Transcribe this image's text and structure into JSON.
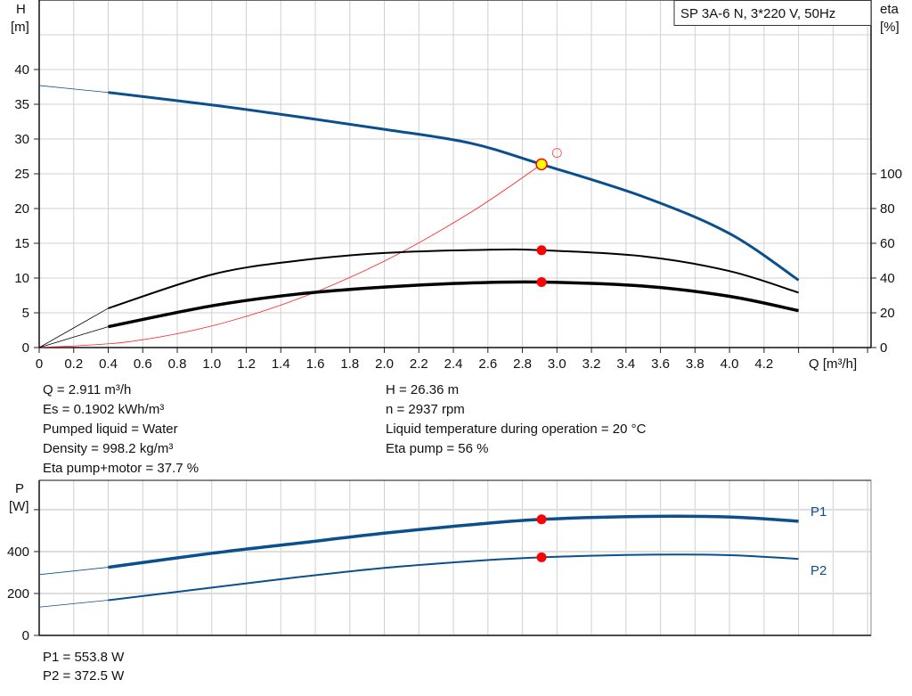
{
  "chart_data": [
    {
      "type": "line",
      "title": "SP 3A-6 N, 3*220 V, 50Hz",
      "xlabel": "Q [m³/h]",
      "ylabel": "H",
      "ylabel_unit": "[m]",
      "y2label": "eta",
      "y2label_unit": "[%]",
      "xlim": [
        0,
        4.82
      ],
      "ylim": [
        0,
        50
      ],
      "y2lim": [
        0,
        200
      ],
      "xticks": [
        "0",
        "0.2",
        "0.4",
        "0.6",
        "0.8",
        "1.0",
        "1.2",
        "1.4",
        "1.6",
        "1.8",
        "2.0",
        "2.2",
        "2.4",
        "2.6",
        "2.8",
        "3.0",
        "3.2",
        "3.4",
        "3.6",
        "3.8",
        "4.0",
        "4.2"
      ],
      "yticks": [
        "0",
        "5",
        "10",
        "15",
        "20",
        "25",
        "30",
        "35",
        "40"
      ],
      "y2ticks": [
        "0",
        "20",
        "40",
        "60",
        "80",
        "100"
      ],
      "grid": true,
      "series": [
        {
          "id": "H",
          "axis": "left",
          "color": "#0b4f8c",
          "x": [
            0,
            0.4,
            1.0,
            1.5,
            2.0,
            2.5,
            2.911,
            3.5,
            4.0,
            4.4
          ],
          "y": [
            37.7,
            36.7,
            34.9,
            33.2,
            31.4,
            29.4,
            26.36,
            21.7,
            16.4,
            9.7
          ]
        },
        {
          "id": "eta_pump",
          "axis": "right",
          "color": "#000000",
          "x": [
            0,
            0.4,
            1.0,
            1.5,
            2.0,
            2.6,
            2.911,
            3.5,
            4.0,
            4.4
          ],
          "y": [
            0,
            22.6,
            42,
            50,
            54.4,
            56.3,
            56,
            52.5,
            44,
            31.6
          ]
        },
        {
          "id": "eta_pump_motor",
          "axis": "right",
          "color": "#000000",
          "x": [
            0,
            0.4,
            1.0,
            1.5,
            2.0,
            2.5,
            2.911,
            3.5,
            4.0,
            4.4
          ],
          "y": [
            0,
            12,
            24,
            30.8,
            34.8,
            37.2,
            37.7,
            35.4,
            29.5,
            21.2
          ]
        },
        {
          "id": "system_curve",
          "axis": "left",
          "color": "#ff2020",
          "x": [
            0,
            0.5,
            1.0,
            1.5,
            2.0,
            2.5,
            2.911
          ],
          "y": [
            0,
            0.78,
            3.11,
            7.0,
            12.44,
            19.44,
            26.36
          ]
        }
      ],
      "duty_point": {
        "Q": 2.911,
        "H": 26.36,
        "eta_pump": 56,
        "eta_pump_motor": 37.7
      },
      "requested_point": {
        "Q": 3.0,
        "H": 28.0
      }
    },
    {
      "type": "line",
      "ylabel": "P",
      "ylabel_unit": "[W]",
      "xlim": [
        0,
        4.82
      ],
      "ylim": [
        0,
        740
      ],
      "yticks": [
        "0",
        "200",
        "400"
      ],
      "grid": true,
      "series": [
        {
          "name": "P1",
          "color": "#0b4f8c",
          "x": [
            0,
            0.4,
            1.0,
            1.5,
            2.0,
            2.5,
            2.911,
            3.5,
            4.0,
            4.4
          ],
          "y": [
            290,
            325,
            392,
            440,
            488,
            528,
            553.8,
            568,
            565,
            545
          ]
        },
        {
          "name": "P2",
          "color": "#0b4f8c",
          "x": [
            0,
            0.4,
            1.0,
            1.5,
            2.0,
            2.5,
            2.911,
            3.5,
            4.0,
            4.4
          ],
          "y": [
            135,
            168,
            228,
            278,
            322,
            354,
            372.5,
            385,
            383,
            365
          ]
        }
      ],
      "duty_point": {
        "Q": 2.911,
        "P1": 553.8,
        "P2": 372.5
      }
    }
  ],
  "info": {
    "left": [
      "Q = 2.911 m³/h",
      "Es = 0.1902 kWh/m³",
      "Pumped liquid = Water",
      "Density = 998.2 kg/m³",
      "Eta pump+motor = 37.7 %"
    ],
    "right": [
      "H = 26.36 m",
      "n = 2937 rpm",
      "Liquid temperature during operation = 20 °C",
      "Eta pump = 56 %"
    ]
  },
  "power_info": [
    "P1 = 553.8 W",
    "P2 = 372.5 W"
  ],
  "colors": {
    "curve_blue": "#0b4f8c",
    "duty_red": "#ff0000",
    "duty_yellow": "#ffff00",
    "grid": "#d0d0d0"
  }
}
